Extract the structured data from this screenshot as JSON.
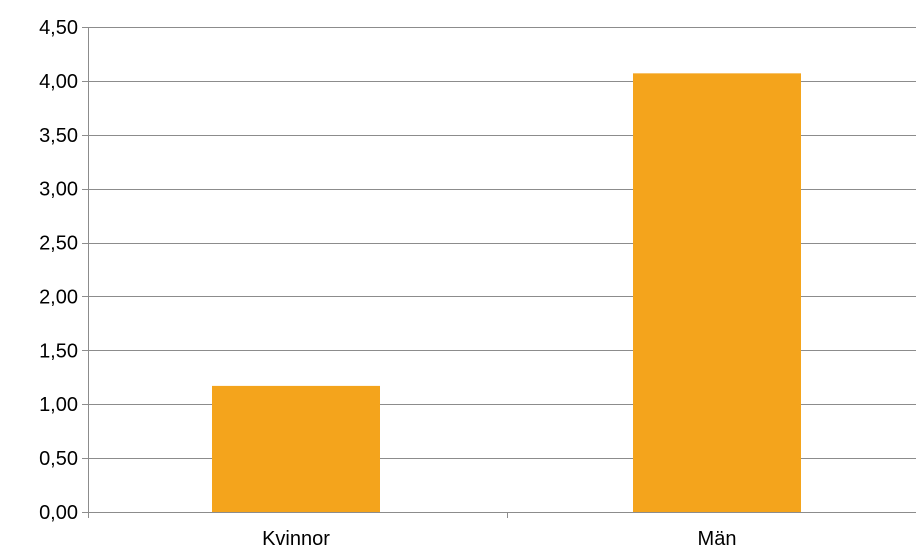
{
  "chart_data": {
    "type": "bar",
    "title": "",
    "xlabel": "",
    "ylabel": "",
    "categories": [
      "Kvinnor",
      "Män"
    ],
    "values": [
      1.17,
      4.07
    ],
    "ylim": [
      0,
      4.5
    ],
    "ytick_values": [
      0,
      0.5,
      1.0,
      1.5,
      2.0,
      2.5,
      3.0,
      3.5,
      4.0,
      4.5
    ],
    "ytick_labels": [
      "0,00",
      "0,50",
      "1,00",
      "1,50",
      "2,00",
      "2,50",
      "3,00",
      "3,50",
      "4,00",
      "4,50"
    ],
    "grid": true,
    "legend": "none",
    "bar_color": "#f4a41c",
    "grid_color": "#8c8c8c"
  }
}
